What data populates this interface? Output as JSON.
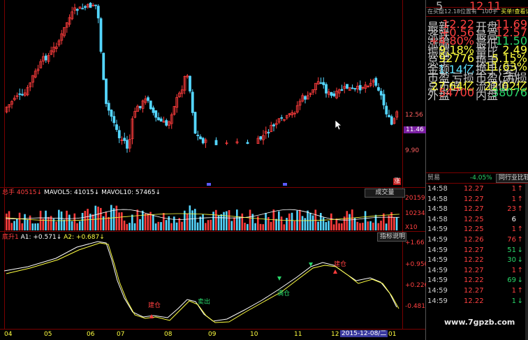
{
  "main_chart": {
    "price_high_label": "12.56",
    "price_current_label": "11.46",
    "price_low_label": "9.90",
    "marker_label": "涨"
  },
  "volume_panel": {
    "title": "总手",
    "total": "40515",
    "mavol5_label": "MAVOL5: 41015",
    "mavol10_label": "MAVOL10: 57465",
    "button": "成交量",
    "axis_top": "20159",
    "axis_mid": "10234",
    "axis_unit": "X10"
  },
  "indicator_panel": {
    "title": "底升1",
    "a1_label": "A1: +0.571",
    "a2_label": "A2: +0.687",
    "button": "指标说明",
    "axis_values": [
      "+1.66",
      "+0.950",
      "+0.226",
      "-0.481"
    ],
    "signals": {
      "fill_label_1": "建仓",
      "sell_label": "卖出",
      "fill_label_2": "满仓",
      "fill_label_3": "建仓"
    }
  },
  "time_axis": {
    "labels": [
      "04",
      "05",
      "06",
      "07",
      "08",
      "09",
      "10",
      "11",
      "12",
      "01"
    ],
    "cursor_date": "2015-12-08/二"
  },
  "quote_panel": {
    "top_sell_row": {
      "level": "5",
      "price": "12.11",
      "vol": ""
    },
    "header": {
      "pos": "在买盘12.18位置有",
      "count": "100手",
      "link": "买单!查看详细"
    },
    "stats": [
      {
        "l1": "最新",
        "v1": "12.22",
        "c1": "red",
        "l2": "开盘",
        "v2": "11.69",
        "c2": "red"
      },
      {
        "l1": "涨跌",
        "v1": "+0.56",
        "c1": "red",
        "l2": "最高",
        "v2": "12.57",
        "c2": "red"
      },
      {
        "l1": "涨幅",
        "v1": "+4.80%",
        "c1": "red",
        "l2": "最低",
        "v2": "11.50",
        "c2": "grn"
      },
      {
        "l1": "振幅",
        "v1": "9.18%",
        "c1": "yel",
        "l2": "量比",
        "v2": "2.49",
        "c2": "yel"
      },
      {
        "l1": "总手",
        "v1": "92776",
        "c1": "yel",
        "l2": "换手",
        "v2": "5.15%",
        "c2": "yel"
      },
      {
        "l1": "金额",
        "v1": "1.14亿",
        "c1": "cyan",
        "l2": "换手(实)",
        "v2": "11.63%",
        "c2": "yel"
      },
      {
        "l1": "市盈",
        "v1": "亏损",
        "c1": "gry",
        "l2": "市盈(动)",
        "v2": "亏损",
        "c2": "gry"
      },
      {
        "l1": "总市值",
        "v1": "27.64亿",
        "c1": "yel",
        "l2": "流通值",
        "v2": "22.02亿",
        "c2": "yel"
      },
      {
        "l1": "外盘",
        "v1": "54700",
        "c1": "red",
        "l2": "内盘",
        "v2": "38076",
        "c2": "grn"
      }
    ],
    "industry": "贸易",
    "industry_change": "-4.05%",
    "compare_button": "同行业比较",
    "trades": [
      {
        "time": "14:58",
        "price": "12.27",
        "vol": "1",
        "dir": "up"
      },
      {
        "time": "14:58",
        "price": "12.27",
        "vol": "1",
        "dir": "up"
      },
      {
        "time": "14:58",
        "price": "12.27",
        "vol": "23",
        "dir": "up"
      },
      {
        "time": "14:58",
        "price": "12.25",
        "vol": "6",
        "dir": "flat"
      },
      {
        "time": "14:59",
        "price": "12.25",
        "vol": "1",
        "dir": "up"
      },
      {
        "time": "14:59",
        "price": "12.26",
        "vol": "76",
        "dir": "up"
      },
      {
        "time": "14:59",
        "price": "12.27",
        "vol": "51",
        "dir": "down"
      },
      {
        "time": "14:59",
        "price": "12.22",
        "vol": "30",
        "dir": "down"
      },
      {
        "time": "14:59",
        "price": "12.27",
        "vol": "1",
        "dir": "up"
      },
      {
        "time": "14:59",
        "price": "12.22",
        "vol": "69",
        "dir": "down"
      },
      {
        "time": "14:59",
        "price": "12.27",
        "vol": "1",
        "dir": "up"
      },
      {
        "time": "14:59",
        "price": "12.22",
        "vol": "1",
        "dir": "down"
      }
    ]
  },
  "watermark": "www.7gpzb.com",
  "colors": {
    "up": "#ff3c3c",
    "down": "#54d6ff",
    "frame": "#7a0000",
    "yellow": "#ffff40",
    "green": "#29d76a"
  }
}
